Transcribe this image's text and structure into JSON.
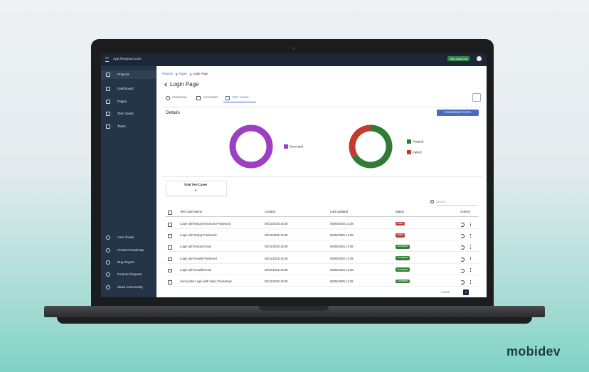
{
  "topbar": {
    "url": "App.freegnoco.com",
    "button": "Task Load Low"
  },
  "sidebar": {
    "main": [
      "Projects",
      "Dashboard",
      "Pages",
      "Test Cases",
      "Tasks"
    ],
    "bottom": [
      "User Guide",
      "Product Roadmap",
      "Bug Report",
      "Feature Request",
      "Slack Community"
    ]
  },
  "breadcrumb": [
    "Projects",
    "Pages",
    "Login Page"
  ],
  "page_title": "Login Page",
  "tabs": [
    "OVERVIEW",
    "UI TESTING",
    "TEST CASES"
  ],
  "details": {
    "title": "Details",
    "button": "REGENERATE TESTS"
  },
  "chart_data": [
    {
      "type": "pie",
      "categories": [
        "Executed"
      ],
      "values": [
        6
      ],
      "colors": [
        "#9c3fc0"
      ]
    },
    {
      "type": "pie",
      "categories": [
        "Passed",
        "Failed"
      ],
      "values": [
        4,
        2
      ],
      "colors": [
        "#2f7d34",
        "#c43b2f"
      ]
    }
  ],
  "summary": {
    "label": "Total Test Cases",
    "value": "6"
  },
  "search_placeholder": "Search...",
  "table": {
    "headers": [
      "Test Case Name",
      "Created",
      "Last Updated",
      "Status",
      "Actions"
    ],
    "rows": [
      [
        "Login with Empty Email and Password",
        "05/12/2025 16:30",
        "06/06/2025 14:38",
        "Failed"
      ],
      [
        "Login with Empty Password",
        "05/12/2025 16:30",
        "06/06/2025 14:38",
        "Failed"
      ],
      [
        "Login with Empty Email",
        "05/12/2025 16:30",
        "06/06/2025 14:38",
        "Completed"
      ],
      [
        "Login with Invalid Password",
        "05/12/2025 16:30",
        "06/06/2025 14:38",
        "Completed"
      ],
      [
        "Login with Invalid Email",
        "05/12/2025 16:30",
        "06/06/2025 14:38",
        "Completed"
      ],
      [
        "Successful Login with Valid Credentials",
        "05/12/2025 16:30",
        "06/06/2025 14:38",
        "Completed"
      ]
    ]
  },
  "pagination": {
    "range": "1-6 of 6",
    "page": "1"
  },
  "brand": "mobidev"
}
